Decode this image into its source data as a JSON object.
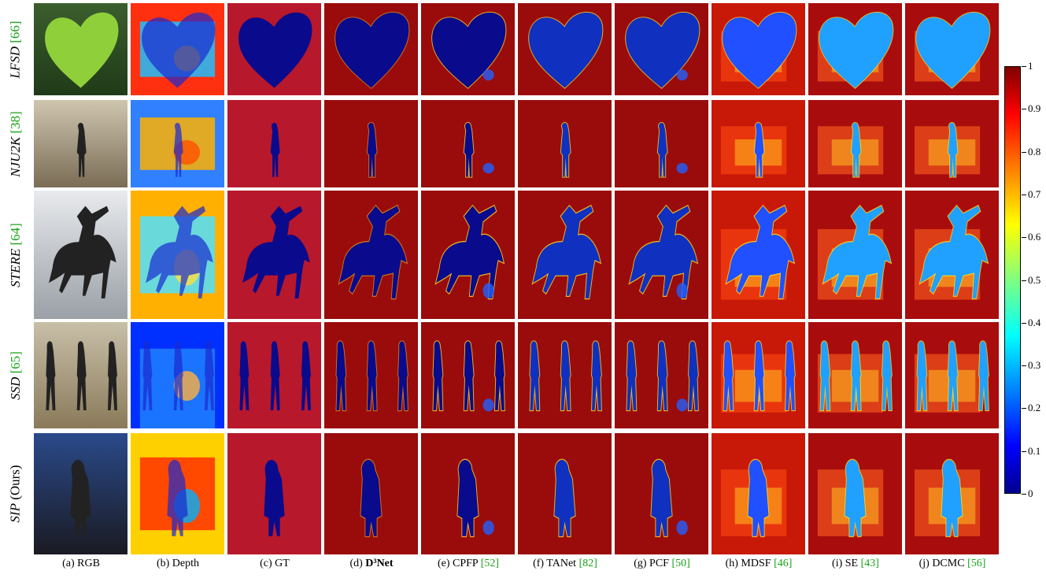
{
  "rows": [
    {
      "name": "LFSD",
      "suffix": "",
      "cite": "[66]"
    },
    {
      "name": "NJU2K",
      "suffix": "",
      "cite": "[38]"
    },
    {
      "name": "STERE",
      "suffix": "",
      "cite": "[64]"
    },
    {
      "name": "SSD",
      "suffix": "",
      "cite": "[65]"
    },
    {
      "name": "SIP",
      "suffix": " (Ours)",
      "cite": ""
    }
  ],
  "columns": [
    {
      "prefix": "(a) RGB",
      "bold": "",
      "cite": ""
    },
    {
      "prefix": "(b) Depth",
      "bold": "",
      "cite": ""
    },
    {
      "prefix": "(c) GT",
      "bold": "",
      "cite": ""
    },
    {
      "prefix": "(d) ",
      "bold": "D³Net",
      "cite": ""
    },
    {
      "prefix": "(e) CPFP ",
      "bold": "",
      "cite": "[52]"
    },
    {
      "prefix": "(f) TANet ",
      "bold": "",
      "cite": "[82]"
    },
    {
      "prefix": "(g) PCF ",
      "bold": "",
      "cite": "[50]"
    },
    {
      "prefix": "(h) MDSF ",
      "bold": "",
      "cite": "[46]"
    },
    {
      "prefix": "(i) SE ",
      "bold": "",
      "cite": "[43]"
    },
    {
      "prefix": "(j) DCMC ",
      "bold": "",
      "cite": "[56]"
    }
  ],
  "colorbar": {
    "ticks": [
      "1",
      "0.9",
      "0.8",
      "0.7",
      "0.6",
      "0.5",
      "0.4",
      "0.3",
      "0.2",
      "0.1",
      "0"
    ],
    "colors": [
      "#00008f",
      "#0000ff",
      "#0080ff",
      "#00ffff",
      "#80ff80",
      "#ffff00",
      "#ff8000",
      "#ff0000",
      "#800000"
    ]
  },
  "colors": {
    "cite": "#1aa31a",
    "gt_background": "#b8182b",
    "map_background": "#9a0b0b",
    "object_blue": "#0a0a8c"
  }
}
